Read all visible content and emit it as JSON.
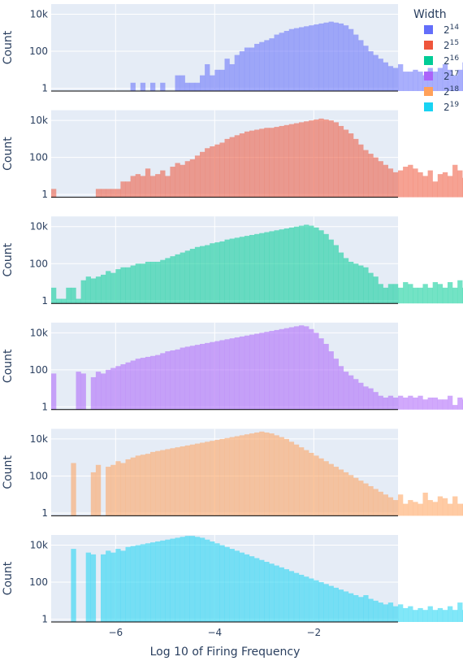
{
  "chart_data": {
    "type": "histogram",
    "layout": "vertical-stacked-subplots",
    "xlabel": "Log 10 of Firing Frequency",
    "ylabel": "Count",
    "y_scale": "log",
    "y_ticks": [
      "1",
      "100",
      "10k"
    ],
    "x_ticks": [
      "−6",
      "−4",
      "−2"
    ],
    "xlim": [
      -7.3,
      -0.3
    ],
    "ylim_log10": [
      -0.15,
      4.55
    ],
    "grid": true,
    "legend": {
      "title": "Width",
      "placement": "top-right"
    },
    "x_bin_start": -7.3,
    "bin_width": 0.1,
    "series": [
      {
        "name": "2^14",
        "label_base": "2",
        "label_exp": "14",
        "color": "#636efa",
        "log10_counts": [
          null,
          null,
          null,
          null,
          null,
          null,
          null,
          null,
          null,
          null,
          null,
          null,
          null,
          null,
          null,
          null,
          0.3,
          null,
          0.3,
          null,
          0.3,
          null,
          0.3,
          null,
          null,
          0.7,
          0.7,
          0.3,
          0.3,
          0.3,
          0.7,
          1.3,
          0.7,
          1.0,
          1.0,
          1.6,
          1.3,
          1.8,
          2.0,
          2.2,
          2.2,
          2.4,
          2.5,
          2.6,
          2.7,
          2.9,
          3.0,
          3.1,
          3.2,
          3.25,
          3.3,
          3.35,
          3.4,
          3.45,
          3.5,
          3.55,
          3.6,
          3.55,
          3.5,
          3.4,
          3.2,
          2.9,
          2.6,
          2.3,
          2.0,
          1.8,
          1.6,
          1.4,
          1.2,
          1.1,
          1.3,
          0.9,
          0.9,
          1.0,
          0.9,
          0.7,
          1.1,
          0.9,
          1.1,
          1.3,
          1.0,
          0.7,
          1.0,
          1.4,
          0.7,
          1.0
        ]
      },
      {
        "name": "2^15",
        "label_base": "2",
        "label_exp": "15",
        "color": "#ef553b",
        "log10_counts": [
          0.3,
          null,
          null,
          null,
          null,
          null,
          null,
          null,
          null,
          0.3,
          0.3,
          0.3,
          0.3,
          0.3,
          0.7,
          0.7,
          1.0,
          1.1,
          1.0,
          1.4,
          1.0,
          1.1,
          1.3,
          1.0,
          1.5,
          1.7,
          1.6,
          1.8,
          1.9,
          2.1,
          2.3,
          2.5,
          2.6,
          2.7,
          2.8,
          3.0,
          3.1,
          3.2,
          3.3,
          3.4,
          3.45,
          3.5,
          3.55,
          3.6,
          3.6,
          3.65,
          3.7,
          3.75,
          3.8,
          3.85,
          3.9,
          3.95,
          4.0,
          4.05,
          4.1,
          4.05,
          4.0,
          3.9,
          3.7,
          3.5,
          3.3,
          3.0,
          2.7,
          2.4,
          2.2,
          2.0,
          1.8,
          1.6,
          1.4,
          1.2,
          1.3,
          1.5,
          1.6,
          1.4,
          1.2,
          1.0,
          1.3,
          0.7,
          1.1,
          1.2,
          1.0,
          1.6,
          1.3,
          0.9,
          1.5,
          1.0
        ]
      },
      {
        "name": "2^16",
        "label_base": "2",
        "label_exp": "16",
        "color": "#00cc96",
        "log10_counts": [
          0.7,
          0.1,
          0.1,
          0.7,
          0.7,
          0.1,
          1.1,
          1.3,
          1.2,
          1.3,
          1.4,
          1.6,
          1.5,
          1.7,
          1.8,
          1.8,
          1.9,
          2.0,
          2.0,
          2.1,
          2.1,
          2.1,
          2.2,
          2.3,
          2.4,
          2.5,
          2.6,
          2.7,
          2.8,
          2.9,
          2.95,
          3.0,
          3.1,
          3.15,
          3.2,
          3.3,
          3.35,
          3.4,
          3.45,
          3.5,
          3.55,
          3.6,
          3.65,
          3.7,
          3.75,
          3.8,
          3.85,
          3.9,
          3.95,
          4.0,
          4.05,
          4.1,
          4.05,
          3.95,
          3.8,
          3.6,
          3.3,
          3.0,
          2.6,
          2.3,
          2.1,
          2.0,
          1.9,
          1.8,
          1.5,
          1.3,
          0.9,
          0.7,
          0.9,
          0.9,
          0.7,
          1.0,
          0.9,
          0.7,
          0.7,
          0.9,
          0.7,
          1.0,
          0.9,
          0.7,
          1.0,
          0.7,
          1.1,
          0.7,
          0.9,
          0.6
        ]
      },
      {
        "name": "2^17",
        "label_base": "2",
        "label_exp": "17",
        "color": "#ab63fa",
        "log10_counts": [
          1.8,
          null,
          null,
          null,
          null,
          1.9,
          1.8,
          null,
          1.6,
          1.9,
          1.8,
          2.0,
          2.1,
          2.2,
          2.3,
          2.4,
          2.5,
          2.6,
          2.65,
          2.7,
          2.75,
          2.8,
          2.9,
          3.0,
          3.05,
          3.1,
          3.2,
          3.25,
          3.3,
          3.35,
          3.4,
          3.45,
          3.5,
          3.55,
          3.6,
          3.65,
          3.7,
          3.75,
          3.8,
          3.85,
          3.9,
          3.95,
          4.0,
          4.05,
          4.1,
          4.15,
          4.2,
          4.25,
          4.3,
          4.35,
          4.4,
          4.35,
          4.2,
          4.0,
          3.7,
          3.4,
          3.0,
          2.6,
          2.2,
          1.9,
          1.7,
          1.5,
          1.3,
          1.1,
          1.0,
          0.8,
          0.6,
          0.5,
          0.6,
          0.5,
          0.6,
          0.5,
          0.6,
          0.5,
          0.6,
          0.4,
          0.5,
          0.5,
          0.4,
          0.4,
          0.6,
          0.1,
          0.5,
          0.4,
          1.2,
          0.5,
          0.3
        ]
      },
      {
        "name": "2^18",
        "label_base": "2",
        "label_exp": "18",
        "color": "#ffa15a",
        "log10_counts": [
          null,
          null,
          null,
          null,
          2.7,
          null,
          null,
          null,
          2.2,
          2.6,
          null,
          2.5,
          2.6,
          2.8,
          2.7,
          2.9,
          3.0,
          3.1,
          3.15,
          3.2,
          3.3,
          3.35,
          3.4,
          3.45,
          3.5,
          3.55,
          3.6,
          3.65,
          3.7,
          3.75,
          3.8,
          3.85,
          3.9,
          3.95,
          4.0,
          4.05,
          4.1,
          4.15,
          4.2,
          4.25,
          4.3,
          4.35,
          4.4,
          4.35,
          4.3,
          4.2,
          4.1,
          4.0,
          3.85,
          3.7,
          3.55,
          3.4,
          3.25,
          3.1,
          2.95,
          2.8,
          2.65,
          2.5,
          2.35,
          2.2,
          2.05,
          1.9,
          1.75,
          1.6,
          1.45,
          1.3,
          1.15,
          1.0,
          0.85,
          0.7,
          1.0,
          0.5,
          0.7,
          0.6,
          0.5,
          1.1,
          0.7,
          0.6,
          0.9,
          0.8,
          0.5,
          0.9,
          0.5,
          0.5,
          0.7,
          0.5
        ]
      },
      {
        "name": "2^19",
        "label_base": "2",
        "label_exp": "19",
        "color": "#19d3f3",
        "log10_counts": [
          null,
          null,
          null,
          null,
          3.8,
          null,
          null,
          3.6,
          3.5,
          null,
          3.5,
          3.7,
          3.6,
          3.8,
          3.7,
          3.9,
          3.95,
          4.0,
          4.05,
          4.1,
          4.15,
          4.2,
          4.25,
          4.3,
          4.35,
          4.4,
          4.45,
          4.5,
          4.5,
          4.45,
          4.4,
          4.3,
          4.2,
          4.1,
          4.0,
          3.9,
          3.8,
          3.7,
          3.6,
          3.5,
          3.4,
          3.3,
          3.2,
          3.1,
          3.0,
          2.9,
          2.8,
          2.7,
          2.6,
          2.5,
          2.4,
          2.3,
          2.2,
          2.1,
          2.0,
          1.9,
          1.8,
          1.7,
          1.6,
          1.5,
          1.4,
          1.3,
          1.2,
          1.3,
          1.1,
          1.0,
          0.9,
          0.8,
          0.9,
          0.7,
          0.8,
          0.6,
          0.7,
          0.5,
          0.6,
          0.5,
          0.7,
          0.5,
          0.6,
          0.5,
          0.7,
          0.5,
          0.9,
          0.5,
          0.7,
          0.4
        ]
      }
    ]
  }
}
